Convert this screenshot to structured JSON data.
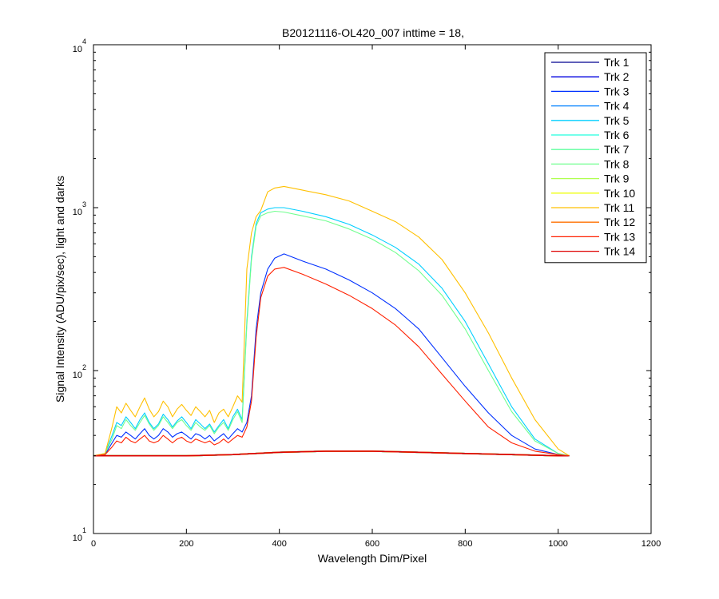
{
  "chart_data": {
    "type": "line",
    "title": "B20121116-OL420_007 inttime = 18,",
    "xlabel": "Wavelength Dim/Pixel",
    "ylabel": "Signal Intensity (ADU/pix/sec), light and darks",
    "xlim": [
      0,
      1200
    ],
    "ylim": [
      10,
      10000
    ],
    "yscale": "log",
    "grid": false,
    "legend_position": "top-right",
    "x_ticks": [
      "0",
      "200",
      "400",
      "600",
      "800",
      "1000",
      "1200"
    ],
    "y_ticks": [
      {
        "base": "10",
        "exp": "1"
      },
      {
        "base": "10",
        "exp": "2"
      },
      {
        "base": "10",
        "exp": "3"
      },
      {
        "base": "10",
        "exp": "4"
      }
    ],
    "series": [
      {
        "name": "Trk 1",
        "color": "#00008f",
        "profile": "dark"
      },
      {
        "name": "Trk 2",
        "color": "#0000df",
        "profile": "dark"
      },
      {
        "name": "Trk 3",
        "color": "#0030ff",
        "profile": "mid"
      },
      {
        "name": "Trk 4",
        "color": "#0080ff",
        "profile": "dark"
      },
      {
        "name": "Trk 5",
        "color": "#00cfff",
        "profile": "high"
      },
      {
        "name": "Trk 6",
        "color": "#20ffdf",
        "profile": "dark"
      },
      {
        "name": "Trk 7",
        "color": "#60ff9f",
        "profile": "dark"
      },
      {
        "name": "Trk 8",
        "color": "#70ff8f",
        "profile": "high2"
      },
      {
        "name": "Trk 9",
        "color": "#b0ff50",
        "profile": "dark"
      },
      {
        "name": "Trk 10",
        "color": "#efff10",
        "profile": "dark"
      },
      {
        "name": "Trk 11",
        "color": "#ffc000",
        "profile": "top"
      },
      {
        "name": "Trk 12",
        "color": "#ff7000",
        "profile": "dark"
      },
      {
        "name": "Trk 13",
        "color": "#ff2000",
        "profile": "low"
      },
      {
        "name": "Trk 14",
        "color": "#df0000",
        "profile": "dark"
      }
    ],
    "profiles": {
      "dark": {
        "x": [
          0,
          100,
          200,
          300,
          400,
          500,
          600,
          700,
          800,
          900,
          1000,
          1024
        ],
        "y": [
          30,
          30,
          30,
          30.5,
          31.5,
          32,
          32,
          31.5,
          31,
          30.5,
          30,
          30
        ]
      },
      "top": {
        "x": [
          0,
          25,
          40,
          50,
          60,
          70,
          80,
          90,
          100,
          110,
          120,
          130,
          140,
          150,
          160,
          170,
          180,
          190,
          200,
          210,
          220,
          230,
          240,
          250,
          260,
          270,
          280,
          290,
          300,
          310,
          320,
          330,
          340,
          350,
          360,
          375,
          390,
          410,
          450,
          500,
          550,
          600,
          650,
          700,
          750,
          800,
          850,
          900,
          950,
          1000,
          1024
        ],
        "y": [
          30,
          31,
          45,
          60,
          55,
          63,
          57,
          52,
          60,
          68,
          58,
          52,
          56,
          65,
          60,
          52,
          58,
          62,
          57,
          53,
          60,
          56,
          52,
          57,
          48,
          55,
          58,
          52,
          60,
          70,
          64,
          420,
          700,
          880,
          960,
          1250,
          1320,
          1350,
          1280,
          1200,
          1100,
          950,
          820,
          660,
          480,
          300,
          170,
          90,
          50,
          33,
          30
        ]
      },
      "high": {
        "x": [
          0,
          25,
          40,
          50,
          60,
          70,
          80,
          90,
          100,
          110,
          120,
          130,
          140,
          150,
          160,
          170,
          180,
          190,
          200,
          210,
          220,
          230,
          240,
          250,
          260,
          270,
          280,
          290,
          300,
          310,
          320,
          330,
          340,
          350,
          360,
          375,
          390,
          410,
          450,
          500,
          550,
          600,
          650,
          700,
          750,
          800,
          850,
          900,
          950,
          1000,
          1024
        ],
        "y": [
          30,
          31,
          40,
          48,
          46,
          52,
          48,
          44,
          50,
          55,
          48,
          44,
          47,
          54,
          50,
          45,
          49,
          52,
          48,
          44,
          50,
          47,
          44,
          47,
          42,
          46,
          50,
          44,
          52,
          58,
          50,
          200,
          500,
          800,
          930,
          980,
          1000,
          1000,
          950,
          880,
          790,
          680,
          570,
          450,
          320,
          200,
          110,
          60,
          38,
          31,
          30
        ]
      },
      "high2": {
        "x": [
          0,
          25,
          40,
          50,
          60,
          70,
          80,
          90,
          100,
          110,
          120,
          130,
          140,
          150,
          160,
          170,
          180,
          190,
          200,
          210,
          220,
          230,
          240,
          250,
          260,
          270,
          280,
          290,
          300,
          310,
          320,
          330,
          340,
          350,
          360,
          375,
          390,
          410,
          450,
          500,
          550,
          600,
          650,
          700,
          750,
          800,
          850,
          900,
          950,
          1000,
          1024
        ],
        "y": [
          30,
          31,
          38,
          46,
          44,
          50,
          46,
          43,
          48,
          53,
          47,
          43,
          46,
          52,
          48,
          44,
          48,
          50,
          46,
          43,
          48,
          45,
          43,
          46,
          41,
          45,
          48,
          43,
          50,
          56,
          48,
          190,
          480,
          770,
          890,
          930,
          950,
          940,
          890,
          830,
          740,
          640,
          530,
          410,
          290,
          180,
          100,
          56,
          37,
          31,
          30
        ]
      },
      "mid": {
        "x": [
          0,
          25,
          40,
          50,
          60,
          70,
          80,
          90,
          100,
          110,
          120,
          130,
          140,
          150,
          160,
          170,
          180,
          190,
          200,
          210,
          220,
          230,
          240,
          250,
          260,
          270,
          280,
          290,
          300,
          310,
          320,
          330,
          340,
          350,
          360,
          375,
          390,
          410,
          450,
          500,
          550,
          600,
          650,
          700,
          750,
          800,
          850,
          900,
          950,
          1000,
          1024
        ],
        "y": [
          30,
          30.5,
          36,
          40,
          39,
          42,
          40,
          38,
          41,
          44,
          40,
          38,
          40,
          44,
          42,
          39,
          41,
          42,
          40,
          38,
          41,
          40,
          38,
          40,
          37,
          39,
          41,
          38,
          41,
          44,
          42,
          48,
          70,
          180,
          300,
          420,
          490,
          520,
          470,
          420,
          360,
          300,
          240,
          180,
          120,
          80,
          55,
          40,
          33,
          30.5,
          30
        ]
      },
      "low": {
        "x": [
          0,
          25,
          40,
          50,
          60,
          70,
          80,
          90,
          100,
          110,
          120,
          130,
          140,
          150,
          160,
          170,
          180,
          190,
          200,
          210,
          220,
          230,
          240,
          250,
          260,
          270,
          280,
          290,
          300,
          310,
          320,
          330,
          340,
          350,
          360,
          375,
          390,
          410,
          450,
          500,
          550,
          600,
          650,
          700,
          750,
          800,
          850,
          900,
          950,
          1000,
          1024
        ],
        "y": [
          30,
          30.5,
          34,
          37,
          36,
          39,
          37,
          36,
          38,
          40,
          37,
          36,
          37,
          40,
          38,
          36,
          38,
          39,
          37,
          36,
          38,
          37,
          36,
          37,
          35,
          36,
          38,
          36,
          38,
          40,
          39,
          45,
          65,
          160,
          280,
          380,
          420,
          430,
          390,
          340,
          290,
          240,
          190,
          140,
          95,
          65,
          45,
          36,
          32,
          30.5,
          30
        ]
      }
    }
  }
}
